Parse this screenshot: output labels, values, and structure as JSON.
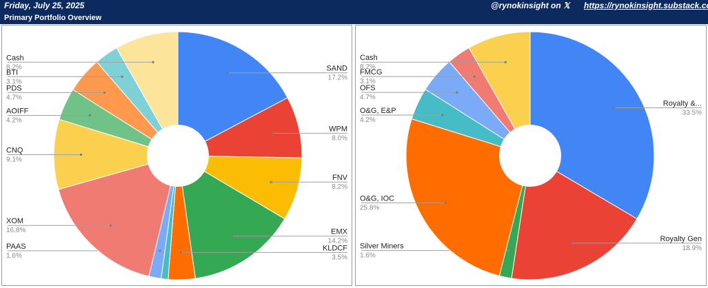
{
  "header": {
    "date": "Friday, July 25, 2025",
    "handle": "@rynokinsight on 𝕏",
    "url": "https://rynokinsight.substack.com/",
    "background": "#0d2a5e"
  },
  "subheader": {
    "title": "Primary Portfolio Overview"
  },
  "chart_data": [
    {
      "type": "pie",
      "donut": true,
      "legend": "none",
      "slices": [
        {
          "label": "SAND",
          "value": 17.2,
          "pct_label": "17.2%",
          "color": "#4285f4"
        },
        {
          "label": "WPM",
          "value": 8.0,
          "pct_label": "8.0%",
          "color": "#ea4335"
        },
        {
          "label": "FNV",
          "value": 8.2,
          "pct_label": "8.2%",
          "color": "#fbbc04"
        },
        {
          "label": "EMX",
          "value": 14.2,
          "pct_label": "14.2%",
          "color": "#34a853"
        },
        {
          "label": "KLDCF",
          "value": 3.5,
          "pct_label": "3.5%",
          "color": "#ff6d01"
        },
        {
          "label": "",
          "value": 0.9,
          "pct_label": "",
          "color": "#46bdc6"
        },
        {
          "label": "PAAS",
          "value": 1.6,
          "pct_label": "1.6%",
          "color": "#7baaf7"
        },
        {
          "label": "XOM",
          "value": 16.8,
          "pct_label": "16.8%",
          "color": "#f07b72"
        },
        {
          "label": "CNQ",
          "value": 9.1,
          "pct_label": "9.1%",
          "color": "#fcd04f"
        },
        {
          "label": "AOIFF",
          "value": 4.2,
          "pct_label": "4.2%",
          "color": "#71c287"
        },
        {
          "label": "PDS",
          "value": 4.7,
          "pct_label": "4.7%",
          "color": "#ff994d"
        },
        {
          "label": "BTI",
          "value": 3.1,
          "pct_label": "3.1%",
          "color": "#7ed1d7"
        },
        {
          "label": "Cash",
          "value": 8.2,
          "pct_label": "8.2%",
          "color": "#fde49b"
        }
      ]
    },
    {
      "type": "pie",
      "donut": true,
      "legend": "none",
      "slices": [
        {
          "label": "Royalty &...",
          "value": 33.5,
          "pct_label": "33.5%",
          "color": "#4285f4"
        },
        {
          "label": "Royalty Gen",
          "value": 18.9,
          "pct_label": "18.9%",
          "color": "#ea4335"
        },
        {
          "label": "Silver Miners",
          "value": 1.6,
          "pct_label": "1.6%",
          "color": "#34a853"
        },
        {
          "label": "O&G, IOC",
          "value": 25.8,
          "pct_label": "25.8%",
          "color": "#ff6d01"
        },
        {
          "label": "O&G, E&P",
          "value": 4.2,
          "pct_label": "4.2%",
          "color": "#46bdc6"
        },
        {
          "label": "OFS",
          "value": 4.7,
          "pct_label": "4.7%",
          "color": "#7baaf7"
        },
        {
          "label": "FMCG",
          "value": 3.1,
          "pct_label": "3.1%",
          "color": "#f07b72"
        },
        {
          "label": "Cash",
          "value": 8.2,
          "pct_label": "8.2%",
          "color": "#fcd04f"
        }
      ]
    }
  ]
}
